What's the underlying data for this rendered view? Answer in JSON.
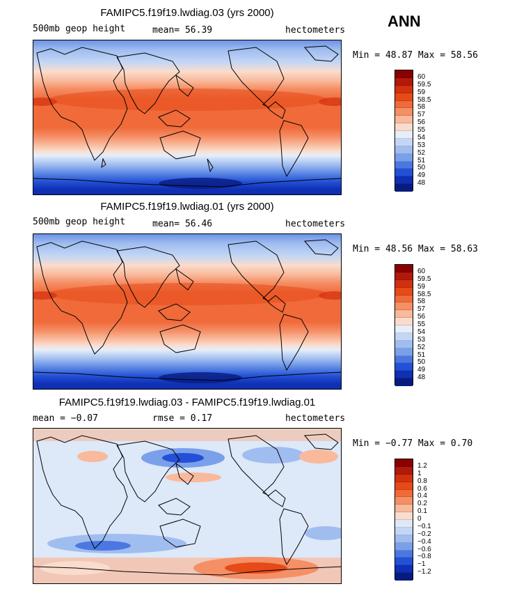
{
  "season": "ANN",
  "panels": [
    {
      "title": "FAMIPC5.f19f19.lwdiag.03 (yrs 2000)",
      "left_label": "500mb geop height",
      "mid_label": "mean=  56.39",
      "right_label": "hectometers",
      "minmax": "Min =  48.87 Max =  58.56",
      "colorbar_labels": [
        "60",
        "59.5",
        "59",
        "58.5",
        "58",
        "57",
        "56",
        "55",
        "54",
        "53",
        "52",
        "51",
        "50",
        "49",
        "48"
      ]
    },
    {
      "title": "FAMIPC5.f19f19.lwdiag.01 (yrs 2000)",
      "left_label": "500mb geop height",
      "mid_label": "mean=  56.46",
      "right_label": "hectometers",
      "minmax": "Min =  48.56 Max =  58.63",
      "colorbar_labels": [
        "60",
        "59.5",
        "59",
        "58.5",
        "58",
        "57",
        "56",
        "55",
        "54",
        "53",
        "52",
        "51",
        "50",
        "49",
        "48"
      ]
    },
    {
      "title": "FAMIPC5.f19f19.lwdiag.03 - FAMIPC5.f19f19.lwdiag.01",
      "left_label": "mean =  −0.07",
      "mid_label": "rmse =   0.17",
      "right_label": "hectometers",
      "minmax": "Min =  −0.77 Max =   0.70",
      "colorbar_labels": [
        "1.2",
        "1",
        "0.8",
        "0.6",
        "0.4",
        "0.2",
        "0.1",
        "0",
        "−0.1",
        "−0.2",
        "−0.4",
        "−0.6",
        "−0.8",
        "−1",
        "−1.2"
      ]
    }
  ],
  "colors": {
    "scale": [
      "#8b0000",
      "#b11a0a",
      "#d2310f",
      "#e64a18",
      "#f06a3a",
      "#f58f66",
      "#f9b99b",
      "#fadccc",
      "#e6eefa",
      "#c3d6f5",
      "#a0bdf0",
      "#7aa0ea",
      "#4b78e0",
      "#2350d6",
      "#0f2fb4",
      "#081c80"
    ],
    "diff_scale": [
      "#8b0000",
      "#b11a0a",
      "#d2310f",
      "#e64a18",
      "#f06a3a",
      "#f58f66",
      "#f9b99b",
      "#fadccc",
      "#dde8f8",
      "#c3d6f5",
      "#a0bdf0",
      "#7aa0ea",
      "#4b78e0",
      "#2350d6",
      "#0f2fb4",
      "#081c80"
    ]
  }
}
